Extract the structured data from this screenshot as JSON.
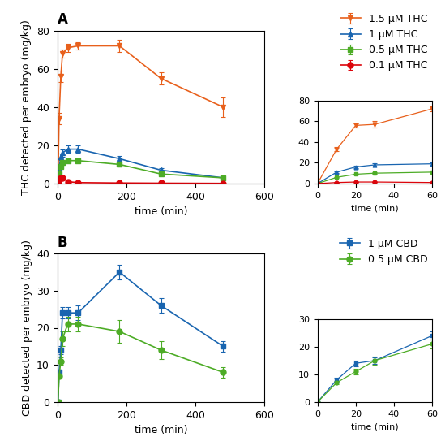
{
  "chart_data": [
    {
      "type": "line",
      "title": "A",
      "x_label": "time (min)",
      "y_label": "THC detected per embryo (mg/kg)",
      "x": [
        2,
        5,
        10,
        15,
        30,
        60,
        180,
        300,
        480
      ],
      "xlim": [
        0,
        600
      ],
      "xticks": [
        0,
        200,
        400,
        600
      ],
      "ylim": [
        0,
        80
      ],
      "yticks": [
        0,
        20,
        40,
        60,
        80
      ],
      "legend": "upper right",
      "series": [
        {
          "name": "1.5 μM THC",
          "color": "#E8601C",
          "marker": "triangle_down",
          "values": [
            0,
            34,
            56,
            68,
            71,
            72,
            72,
            55,
            40
          ],
          "errors": [
            0,
            3,
            3,
            2,
            2,
            2,
            3,
            3,
            5
          ]
        },
        {
          "name": "1 μM THC",
          "color": "#1965B0",
          "marker": "triangle_up",
          "values": [
            0,
            8,
            14,
            16,
            18,
            18,
            13,
            7,
            3
          ],
          "errors": [
            0,
            1,
            1.5,
            2,
            2,
            2,
            1.5,
            1,
            0.5
          ]
        },
        {
          "name": "0.5 μM THC",
          "color": "#4DAC26",
          "marker": "square",
          "values": [
            0,
            5,
            9,
            11,
            12,
            12,
            10,
            5,
            3
          ],
          "errors": [
            0,
            0.5,
            0.8,
            1,
            1,
            1,
            1,
            0.5,
            0.3
          ]
        },
        {
          "name": "0.1 μM THC",
          "color": "#DC050C",
          "marker": "circle",
          "values": [
            0,
            2,
            3,
            3,
            1,
            0.5,
            0.3,
            0.2,
            0.1
          ],
          "errors": [
            0,
            0.3,
            0.4,
            0.4,
            0.2,
            0.1,
            0.05,
            0.05,
            0.05
          ]
        }
      ]
    },
    {
      "type": "line",
      "x_label": "time (min)",
      "x": [
        0,
        10,
        20,
        30,
        60
      ],
      "xlim": [
        0,
        60
      ],
      "xticks": [
        0,
        20,
        40,
        60
      ],
      "ylim": [
        0,
        80
      ],
      "yticks": [
        0,
        20,
        40,
        60,
        80
      ],
      "series": [
        {
          "color": "#E8601C",
          "marker": "triangle_down",
          "values": [
            0,
            33,
            56,
            57,
            72
          ],
          "errors": [
            0,
            2,
            2,
            3,
            2
          ]
        },
        {
          "color": "#1965B0",
          "marker": "triangle_up",
          "values": [
            0,
            11,
            16,
            18,
            19
          ],
          "errors": [
            0,
            1,
            1.5,
            1.5,
            1.5
          ]
        },
        {
          "color": "#4DAC26",
          "marker": "square",
          "values": [
            0,
            6,
            9,
            10,
            11
          ],
          "errors": [
            0,
            0.5,
            0.7,
            0.8,
            0.8
          ]
        },
        {
          "color": "#DC050C",
          "marker": "circle",
          "values": [
            0,
            1,
            1.5,
            1.5,
            1
          ],
          "errors": [
            0,
            0.2,
            0.2,
            0.2,
            0.15
          ]
        }
      ]
    },
    {
      "type": "line",
      "title": "B",
      "x_label": "time (min)",
      "y_label": "CBD detected per embryo (mg/kg)",
      "x": [
        2,
        5,
        10,
        15,
        30,
        60,
        180,
        300,
        480
      ],
      "xlim": [
        0,
        600
      ],
      "xticks": [
        0,
        200,
        400,
        600
      ],
      "ylim": [
        0,
        40
      ],
      "yticks": [
        0,
        10,
        20,
        30,
        40
      ],
      "legend": "upper right",
      "series": [
        {
          "name": "1 μM CBD",
          "color": "#1965B0",
          "marker": "square",
          "values": [
            0,
            8,
            14,
            24,
            24,
            24,
            35,
            26,
            15
          ],
          "errors": [
            0,
            0.8,
            1,
            1.5,
            1.5,
            2,
            2,
            2,
            1.5
          ]
        },
        {
          "name": "0.5 μM CBD",
          "color": "#4DAC26",
          "marker": "circle",
          "values": [
            0,
            7,
            11,
            17,
            21,
            21,
            19,
            14,
            8
          ],
          "errors": [
            0,
            0.7,
            1,
            2,
            2,
            2,
            3,
            2.5,
            1.5
          ]
        }
      ]
    },
    {
      "type": "line",
      "x_label": "time (min)",
      "x": [
        0,
        10,
        20,
        30,
        60
      ],
      "xlim": [
        0,
        60
      ],
      "xticks": [
        0,
        20,
        40,
        60
      ],
      "ylim": [
        0,
        30
      ],
      "yticks": [
        0,
        10,
        20,
        30
      ],
      "series": [
        {
          "color": "#1965B0",
          "marker": "square",
          "values": [
            0,
            8,
            14,
            15,
            24
          ],
          "errors": [
            0,
            0.8,
            1,
            1.2,
            1.5
          ]
        },
        {
          "color": "#4DAC26",
          "marker": "circle",
          "values": [
            0,
            7,
            11,
            15,
            21
          ],
          "errors": [
            0,
            0.7,
            1,
            1.5,
            1.5
          ]
        }
      ]
    }
  ]
}
